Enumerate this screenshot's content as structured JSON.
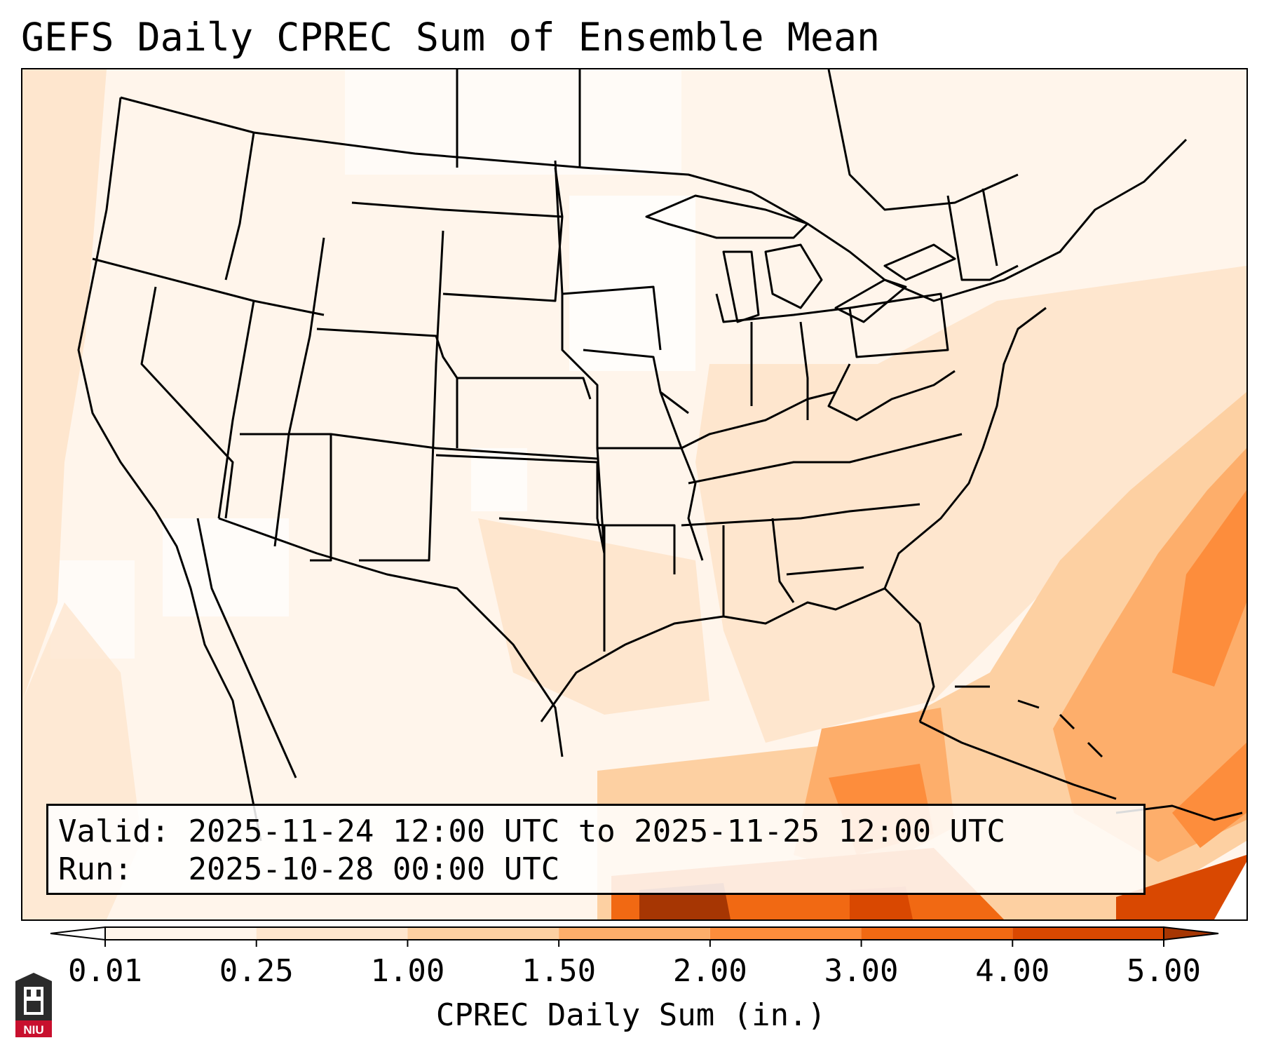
{
  "title": "GEFS Daily CPREC Sum of Ensemble Mean",
  "info": {
    "valid_label": "Valid:",
    "valid_value": "2025-11-24 12:00 UTC to 2025-11-25 12:00 UTC",
    "run_label": "Run:",
    "run_value": "2025-10-28 00:00 UTC"
  },
  "colorbar": {
    "label": "CPREC Daily Sum (in.)",
    "ticks": [
      "0.01",
      "0.25",
      "1.00",
      "1.50",
      "2.00",
      "3.00",
      "4.00",
      "5.00"
    ],
    "colors": [
      "#fff5eb",
      "#fee6ce",
      "#fdd0a2",
      "#fdae6b",
      "#fd8d3c",
      "#f16913",
      "#d94801",
      "#a63603"
    ],
    "extend": "both"
  },
  "logo": {
    "text": "NIU",
    "color": "#c8102e"
  },
  "map": {
    "projection": "Lambert conformal over CONUS",
    "max_precip_region": "southern Gulf of Mexico, Caribbean and western Atlantic off the Southeast coast"
  }
}
